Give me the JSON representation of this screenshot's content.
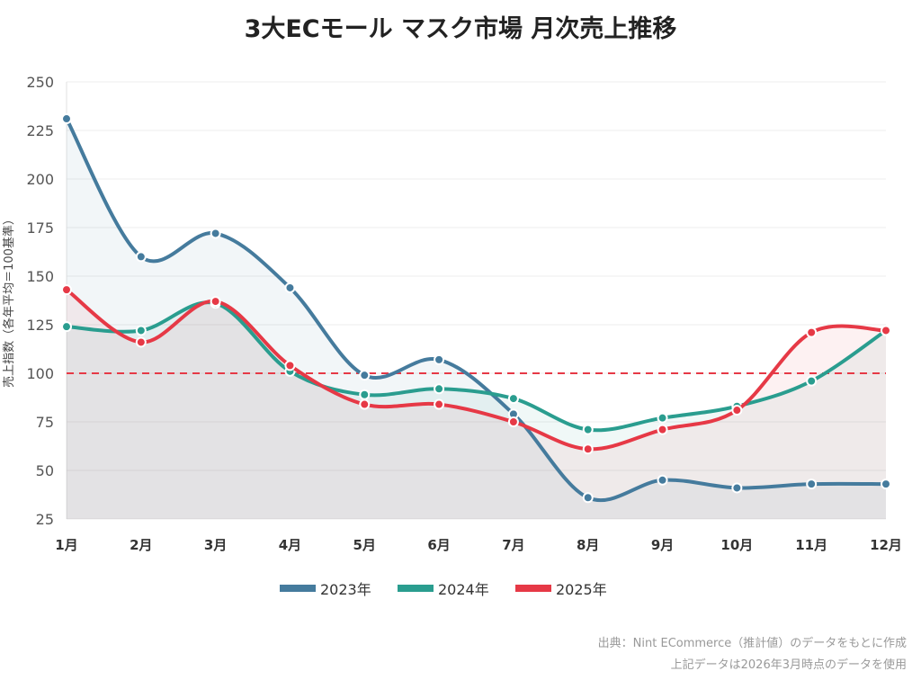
{
  "chart_data": {
    "type": "line",
    "title": "3大ECモール マスク市場 月次売上推移",
    "ylabel": "売上指数（各年平均＝100基準）",
    "xlabel": "",
    "categories": [
      "1月",
      "2月",
      "3月",
      "4月",
      "5月",
      "6月",
      "7月",
      "8月",
      "9月",
      "10月",
      "11月",
      "12月"
    ],
    "ylim": [
      25,
      250
    ],
    "yticks": [
      25,
      50,
      75,
      100,
      125,
      150,
      175,
      200,
      225,
      250
    ],
    "reference_line": 100,
    "grid": true,
    "legend_position": "bottom",
    "series": [
      {
        "name": "2023年",
        "color": "#457b9d",
        "values": [
          231,
          160,
          172,
          144,
          99,
          107,
          79,
          36,
          45,
          41,
          43,
          43
        ]
      },
      {
        "name": "2024年",
        "color": "#2a9d8f",
        "values": [
          124,
          122,
          136,
          101,
          89,
          92,
          87,
          71,
          77,
          83,
          96,
          122
        ]
      },
      {
        "name": "2025年",
        "color": "#e63946",
        "values": [
          143,
          116,
          137,
          104,
          84,
          84,
          75,
          61,
          71,
          81,
          121,
          122
        ]
      }
    ]
  },
  "source": "出典：Nint ECommerce（推計値）のデータをもとに作成",
  "note": "上記データは2026年3月時点のデータを使用"
}
